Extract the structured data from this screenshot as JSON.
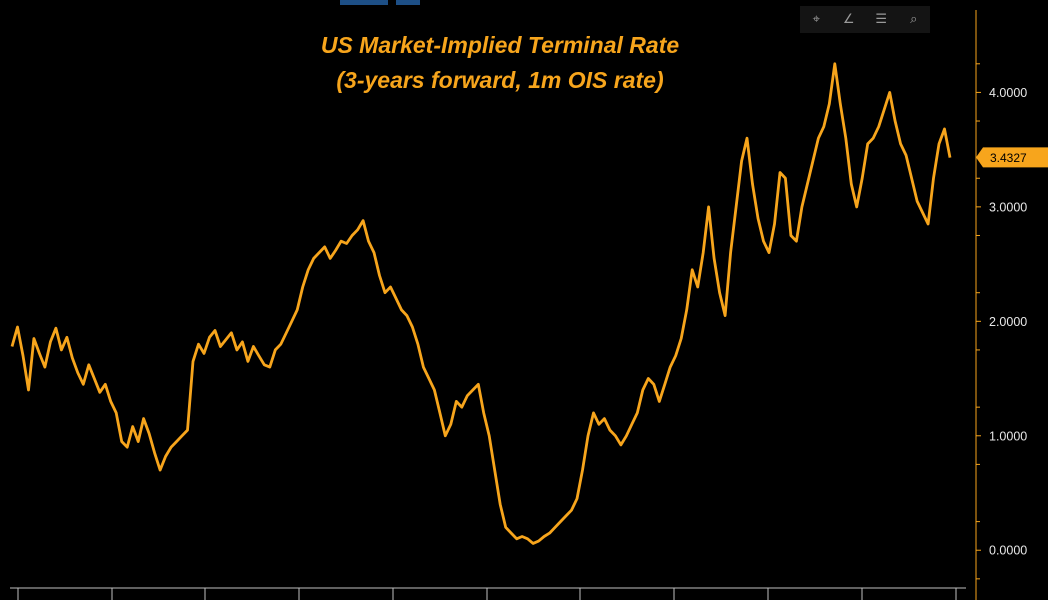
{
  "chart_data": {
    "type": "line",
    "title": "US Market-Implied Terminal Rate",
    "subtitle": "(3-years forward, 1m OIS rate)",
    "xlabel": "",
    "ylabel": "",
    "ylim": [
      -0.33,
      4.72
    ],
    "yticks": [
      "0.0000",
      "1.0000",
      "2.0000",
      "3.0000",
      "4.0000"
    ],
    "tick_values": [
      0,
      1,
      2,
      3,
      4
    ],
    "last_value_label": "3.4327",
    "series": [
      {
        "name": "US Market-Implied Terminal Rate",
        "color": "#f7a51c",
        "values": [
          1.78,
          1.95,
          1.7,
          1.4,
          1.85,
          1.72,
          1.6,
          1.82,
          1.94,
          1.75,
          1.86,
          1.68,
          1.55,
          1.45,
          1.62,
          1.5,
          1.38,
          1.45,
          1.3,
          1.2,
          0.95,
          0.9,
          1.08,
          0.95,
          1.15,
          1.02,
          0.85,
          0.7,
          0.82,
          0.9,
          0.95,
          1.0,
          1.05,
          1.65,
          1.8,
          1.72,
          1.86,
          1.92,
          1.78,
          1.84,
          1.9,
          1.75,
          1.82,
          1.65,
          1.78,
          1.7,
          1.62,
          1.6,
          1.75,
          1.8,
          1.9,
          2.0,
          2.1,
          2.3,
          2.45,
          2.55,
          2.6,
          2.65,
          2.55,
          2.62,
          2.7,
          2.68,
          2.75,
          2.8,
          2.88,
          2.7,
          2.6,
          2.4,
          2.25,
          2.3,
          2.2,
          2.1,
          2.05,
          1.95,
          1.8,
          1.6,
          1.5,
          1.4,
          1.2,
          1.0,
          1.1,
          1.3,
          1.25,
          1.35,
          1.4,
          1.45,
          1.2,
          1.0,
          0.7,
          0.4,
          0.2,
          0.15,
          0.1,
          0.12,
          0.1,
          0.06,
          0.08,
          0.12,
          0.15,
          0.2,
          0.25,
          0.3,
          0.35,
          0.45,
          0.7,
          1.0,
          1.2,
          1.1,
          1.15,
          1.05,
          1.0,
          0.92,
          1.0,
          1.1,
          1.2,
          1.4,
          1.5,
          1.45,
          1.3,
          1.45,
          1.6,
          1.7,
          1.85,
          2.1,
          2.45,
          2.3,
          2.6,
          3.0,
          2.55,
          2.25,
          2.05,
          2.6,
          3.0,
          3.4,
          3.6,
          3.2,
          2.9,
          2.7,
          2.6,
          2.85,
          3.3,
          3.25,
          2.75,
          2.7,
          3.0,
          3.2,
          3.4,
          3.6,
          3.7,
          3.9,
          4.25,
          3.9,
          3.6,
          3.2,
          3.0,
          3.25,
          3.55,
          3.6,
          3.7,
          3.85,
          4.0,
          3.75,
          3.55,
          3.45,
          3.25,
          3.05,
          2.95,
          2.85,
          3.25,
          3.55,
          3.68,
          3.43
        ]
      }
    ]
  }
}
